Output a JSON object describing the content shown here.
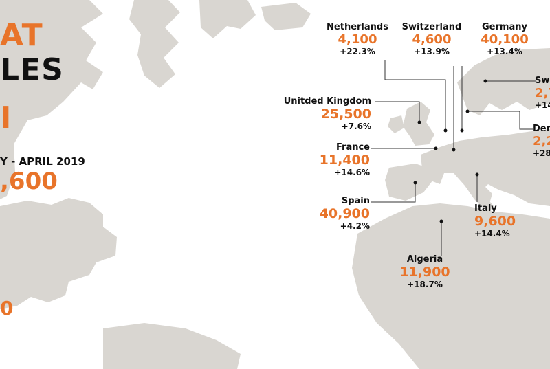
{
  "headline": {
    "line1": "AT",
    "line2": "LES",
    "line3": "I"
  },
  "period_label": "Y - APRIL 2019",
  "total_value": ",600",
  "lower_value": "0",
  "countries": {
    "netherlands": {
      "name": "Netherlands",
      "value": "4,100",
      "change": "+22.3%"
    },
    "switzerland": {
      "name": "Switzerland",
      "value": "4,600",
      "change": "+13.9%"
    },
    "germany": {
      "name": "Germany",
      "value": "40,100",
      "change": "+13.4%"
    },
    "sweden": {
      "name": "Swe",
      "value": "2,7",
      "change": "+14"
    },
    "denmark": {
      "name": "Den",
      "value": "2,2",
      "change": "+28"
    },
    "uk": {
      "name": "Unitded Kingdom",
      "value": "25,500",
      "change": "+7.6%"
    },
    "france": {
      "name": "France",
      "value": "11,400",
      "change": "+14.6%"
    },
    "spain": {
      "name": "Spain",
      "value": "40,900",
      "change": "+4.2%"
    },
    "italy": {
      "name": "Italy",
      "value": "9,600",
      "change": "+14.4%"
    },
    "algeria": {
      "name": "Algeria",
      "value": "11,900",
      "change": "+18.7%"
    }
  },
  "colors": {
    "accent": "#e8742a",
    "land": "#d9d6d1",
    "text": "#111111"
  }
}
